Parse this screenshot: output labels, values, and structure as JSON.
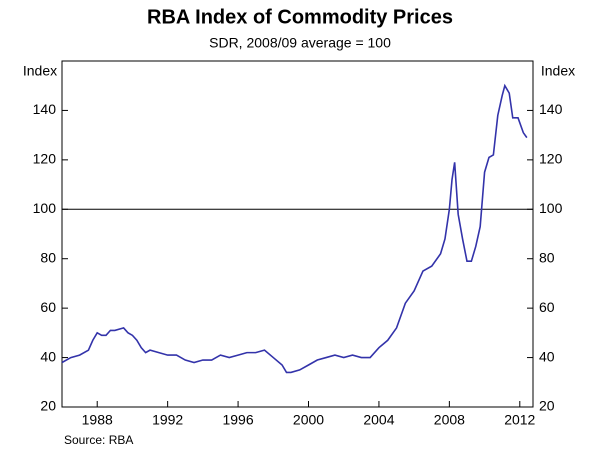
{
  "chart_data": {
    "type": "line",
    "title": "RBA Index of Commodity Prices",
    "subtitle": "SDR, 2008/09 average = 100",
    "y_label": "Index",
    "y2_label": "Index",
    "source": "Source: RBA",
    "x": [
      1986.0,
      1986.5,
      1987.0,
      1987.5,
      1987.75,
      1988.0,
      1988.25,
      1988.5,
      1988.75,
      1989.0,
      1989.5,
      1989.75,
      1990.0,
      1990.25,
      1990.5,
      1990.75,
      1991.0,
      1991.5,
      1992.0,
      1992.5,
      1993.0,
      1993.5,
      1994.0,
      1994.5,
      1995.0,
      1995.5,
      1996.0,
      1996.5,
      1997.0,
      1997.5,
      1998.0,
      1998.5,
      1998.75,
      1999.0,
      1999.5,
      2000.0,
      2000.5,
      2001.0,
      2001.5,
      2002.0,
      2002.5,
      2003.0,
      2003.5,
      2004.0,
      2004.5,
      2005.0,
      2005.5,
      2006.0,
      2006.5,
      2007.0,
      2007.5,
      2007.75,
      2008.0,
      2008.15,
      2008.3,
      2008.5,
      2008.75,
      2009.0,
      2009.25,
      2009.5,
      2009.75,
      2010.0,
      2010.25,
      2010.5,
      2010.75,
      2011.0,
      2011.15,
      2011.4,
      2011.6,
      2011.9,
      2012.2,
      2012.4
    ],
    "series": [
      {
        "name": "Index",
        "color": "#3333aa",
        "values": [
          38,
          40,
          41,
          43,
          47,
          50,
          49,
          49,
          51,
          51,
          52,
          50,
          49,
          47,
          44,
          42,
          43,
          42,
          41,
          41,
          39,
          38,
          39,
          39,
          41,
          40,
          41,
          42,
          42,
          43,
          40,
          37,
          34,
          34,
          35,
          37,
          39,
          40,
          41,
          40,
          41,
          40,
          40,
          44,
          47,
          52,
          62,
          67,
          75,
          77,
          82,
          88,
          100,
          112,
          119,
          98,
          88,
          79,
          79,
          85,
          93,
          115,
          121,
          122,
          138,
          146,
          150,
          147,
          137,
          137,
          131,
          129
        ]
      }
    ],
    "xlim": [
      1986,
      2012.75
    ],
    "xticks": [
      1988,
      1992,
      1996,
      2000,
      2004,
      2008,
      2012
    ],
    "ylim": [
      20,
      160
    ],
    "yticks": [
      20,
      40,
      60,
      80,
      100,
      120,
      140
    ],
    "reference_line": 100
  }
}
